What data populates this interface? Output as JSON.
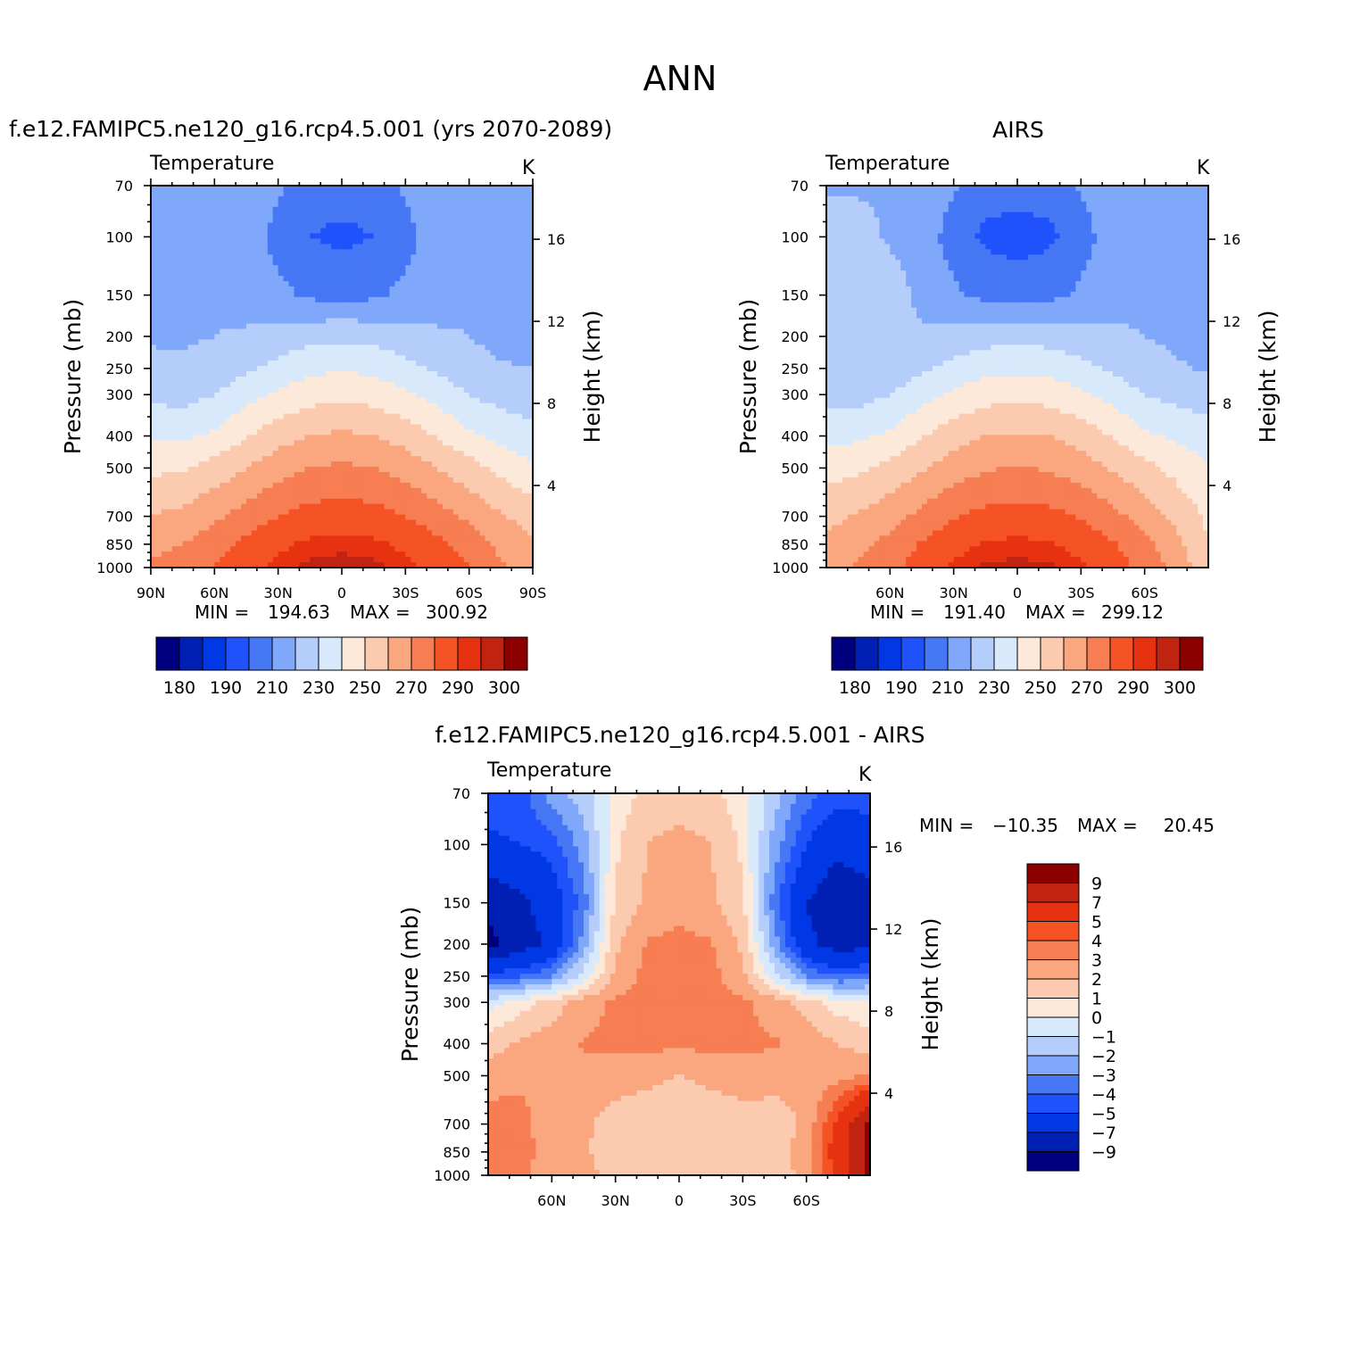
{
  "figure": {
    "season": "ANN"
  },
  "palettes": {
    "abs": [
      "#00007f",
      "#0020b4",
      "#0038e6",
      "#1f52fa",
      "#4677f5",
      "#80a8fa",
      "#b4cdfa",
      "#d9e9fc",
      "#fde9d9",
      "#fccaae",
      "#faa780",
      "#f77d52",
      "#f55225",
      "#e63210",
      "#c02410",
      "#8c0000"
    ],
    "diff": [
      "#8c0000",
      "#c02410",
      "#e63210",
      "#f55225",
      "#f77d52",
      "#faa780",
      "#fccaae",
      "#fde9d9",
      "#d9e9fc",
      "#b4cdfa",
      "#80a8fa",
      "#4677f5",
      "#1f52fa",
      "#0038e6",
      "#0020b4",
      "#00007f"
    ]
  },
  "chart_data": [
    {
      "id": "model",
      "type": "contour",
      "title": "f.e12.FAMIPC5.ne120_g16.rcp4.5.001 (yrs 2070-2089)",
      "field": "Temperature",
      "units": "K",
      "xlabel": "",
      "ylabel": "Pressure (mb)",
      "ylabel_right": "Height (km)",
      "xlim": [
        90,
        -90
      ],
      "x_ticks": [
        90,
        60,
        30,
        0,
        -30,
        -60,
        -90
      ],
      "x_ticklabels": [
        "90N",
        "60N",
        "30N",
        "0",
        "30S",
        "60S",
        "90S"
      ],
      "ylim": [
        1000,
        70
      ],
      "y_ticks": [
        70,
        100,
        150,
        200,
        250,
        300,
        400,
        500,
        700,
        850,
        1000
      ],
      "y_ticklabels": [
        "70",
        "100",
        "150",
        "200",
        "250",
        "300",
        "400",
        "500",
        "700",
        "850",
        "1000"
      ],
      "height_ticks_km": [
        4,
        8,
        12,
        16
      ],
      "height_ticklabels": [
        "4",
        "8",
        "12",
        "16"
      ],
      "levels": [
        180,
        185,
        190,
        200,
        210,
        220,
        230,
        240,
        250,
        260,
        270,
        280,
        290,
        295,
        300
      ],
      "colorbar_labels": [
        "180",
        "190",
        "210",
        "230",
        "250",
        "270",
        "290",
        "300"
      ],
      "stats": {
        "min_label": "MIN =",
        "min": "194.63",
        "max_label": "MAX =",
        "max": "300.92"
      },
      "lat": [
        90,
        75,
        60,
        45,
        30,
        15,
        0,
        -15,
        -30,
        -45,
        -60,
        -75,
        -90
      ],
      "plev": [
        70,
        100,
        150,
        200,
        250,
        300,
        400,
        500,
        700,
        850,
        1000
      ],
      "values": [
        [
          219,
          219,
          219,
          219,
          212,
          204,
          204,
          204,
          212,
          219,
          219,
          214,
          212
        ],
        [
          219,
          219,
          219,
          216,
          206,
          200,
          198,
          200,
          206,
          216,
          219,
          213,
          212
        ],
        [
          219,
          219,
          219,
          217,
          213,
          208,
          207,
          208,
          213,
          217,
          219,
          214,
          213
        ],
        [
          219,
          219,
          220,
          221,
          224,
          227,
          228,
          227,
          224,
          221,
          220,
          217,
          215
        ],
        [
          222,
          221,
          224,
          228,
          233,
          237,
          239,
          237,
          233,
          228,
          224,
          221,
          220
        ],
        [
          228,
          226,
          230,
          236,
          242,
          246,
          248,
          246,
          242,
          236,
          230,
          226,
          224
        ],
        [
          238,
          238,
          242,
          249,
          256,
          260,
          262,
          260,
          256,
          249,
          242,
          237,
          233
        ],
        [
          248,
          249,
          254,
          260,
          266,
          270,
          272,
          270,
          266,
          260,
          254,
          247,
          241
        ],
        [
          260,
          263,
          268,
          274,
          280,
          284,
          285,
          284,
          280,
          274,
          268,
          261,
          256
        ],
        [
          267,
          270,
          276,
          283,
          288,
          292,
          293,
          292,
          288,
          283,
          276,
          268,
          261
        ],
        [
          272,
          274,
          280,
          287,
          292,
          297,
          298,
          297,
          292,
          287,
          280,
          271,
          264
        ]
      ]
    },
    {
      "id": "obs",
      "type": "contour",
      "title": "AIRS",
      "field": "Temperature",
      "units": "K",
      "xlabel": "",
      "ylabel": "Pressure (mb)",
      "ylabel_right": "Height (km)",
      "xlim": [
        90,
        -90
      ],
      "x_ticks": [
        60,
        30,
        0,
        -30,
        -60
      ],
      "x_ticklabels": [
        "60N",
        "30N",
        "0",
        "30S",
        "60S"
      ],
      "ylim": [
        1000,
        70
      ],
      "y_ticks": [
        70,
        100,
        150,
        200,
        250,
        300,
        400,
        500,
        700,
        850,
        1000
      ],
      "y_ticklabels": [
        "70",
        "100",
        "150",
        "200",
        "250",
        "300",
        "400",
        "500",
        "700",
        "850",
        "1000"
      ],
      "height_ticks_km": [
        4,
        8,
        12,
        16
      ],
      "height_ticklabels": [
        "4",
        "8",
        "12",
        "16"
      ],
      "levels": [
        180,
        185,
        190,
        200,
        210,
        220,
        230,
        240,
        250,
        260,
        270,
        280,
        290,
        295,
        300
      ],
      "colorbar_labels": [
        "180",
        "190",
        "210",
        "230",
        "250",
        "270",
        "290",
        "300"
      ],
      "stats": {
        "min_label": "MIN =",
        "min": "191.40",
        "max_label": "MAX =",
        "max": "299.12"
      },
      "lat": [
        90,
        75,
        60,
        45,
        30,
        15,
        0,
        -15,
        -30,
        -45,
        -60,
        -75,
        -90
      ],
      "plev": [
        70,
        100,
        150,
        200,
        250,
        300,
        400,
        500,
        700,
        850,
        1000
      ],
      "values": [
        [
          219,
          219,
          219,
          218,
          211,
          204,
          204,
          204,
          211,
          218,
          219,
          217,
          212
        ],
        [
          224,
          223,
          219,
          216,
          205,
          198,
          196,
          198,
          205,
          216,
          219,
          217,
          214
        ],
        [
          226,
          226,
          224,
          218,
          212,
          207,
          206,
          207,
          212,
          218,
          219,
          217,
          216
        ],
        [
          225,
          225,
          223,
          221,
          224,
          226,
          227,
          226,
          224,
          221,
          220,
          218,
          217
        ],
        [
          222,
          221,
          224,
          228,
          233,
          237,
          238,
          237,
          233,
          228,
          224,
          221,
          219
        ],
        [
          227,
          226,
          230,
          236,
          242,
          246,
          247,
          246,
          242,
          236,
          230,
          227,
          224
        ],
        [
          237,
          238,
          242,
          249,
          256,
          260,
          261,
          260,
          256,
          249,
          242,
          238,
          235
        ],
        [
          246,
          248,
          253,
          259,
          265,
          269,
          271,
          269,
          265,
          259,
          253,
          247,
          241
        ],
        [
          257,
          261,
          266,
          273,
          279,
          283,
          284,
          283,
          279,
          273,
          266,
          257,
          248
        ],
        [
          263,
          267,
          273,
          281,
          287,
          291,
          292,
          291,
          287,
          281,
          273,
          263,
          250
        ],
        [
          268,
          271,
          277,
          285,
          291,
          296,
          297,
          296,
          291,
          285,
          277,
          266,
          254
        ]
      ]
    },
    {
      "id": "diff",
      "type": "contour",
      "title": "f.e12.FAMIPC5.ne120_g16.rcp4.5.001 - AIRS",
      "field": "Temperature",
      "units": "K",
      "xlabel": "",
      "ylabel": "Pressure (mb)",
      "ylabel_right": "Height (km)",
      "xlim": [
        90,
        -90
      ],
      "x_ticks": [
        60,
        30,
        0,
        -30,
        -60
      ],
      "x_ticklabels": [
        "60N",
        "30N",
        "0",
        "30S",
        "60S"
      ],
      "ylim": [
        1000,
        70
      ],
      "y_ticks": [
        70,
        100,
        150,
        200,
        250,
        300,
        400,
        500,
        700,
        850,
        1000
      ],
      "y_ticklabels": [
        "70",
        "100",
        "150",
        "200",
        "250",
        "300",
        "400",
        "500",
        "700",
        "850",
        "1000"
      ],
      "height_ticks_km": [
        4,
        8,
        12,
        16
      ],
      "height_ticklabels": [
        "4",
        "8",
        "12",
        "16"
      ],
      "levels": [
        -9,
        -7,
        -5,
        -4,
        -3,
        -2,
        -1,
        0,
        1,
        2,
        3,
        4,
        5,
        7,
        9
      ],
      "colorbar_labels": [
        "9",
        "7",
        "5",
        "4",
        "3",
        "2",
        "1",
        "0",
        "−1",
        "−2",
        "−3",
        "−4",
        "−5",
        "−7",
        "−9"
      ],
      "stats": {
        "min_label": "MIN =",
        "min": "−10.35",
        "max_label": "MAX =",
        "max": "20.45"
      },
      "lat": [
        90,
        75,
        60,
        45,
        30,
        15,
        0,
        -15,
        -30,
        -45,
        -60,
        -75,
        -90
      ],
      "plev": [
        70,
        100,
        150,
        200,
        250,
        300,
        400,
        500,
        700,
        850,
        1000
      ],
      "values": [
        [
          -4.5,
          -4.5,
          -2.5,
          -1.5,
          0.5,
          1.2,
          1.0,
          1.2,
          0.5,
          -1.5,
          -3.5,
          -4.5,
          -4.5
        ],
        [
          -5.2,
          -5.0,
          -4.5,
          -2.5,
          0.8,
          2.0,
          2.6,
          2.0,
          0.8,
          -2.5,
          -5.0,
          -6.5,
          -5.5
        ],
        [
          -8.5,
          -7.5,
          -6.0,
          -3.5,
          1.2,
          2.2,
          2.4,
          2.2,
          1.2,
          -3.5,
          -7.0,
          -8.5,
          -8.0
        ],
        [
          -9.5,
          -8.0,
          -6.5,
          -2.5,
          1.8,
          3.1,
          3.4,
          3.1,
          1.8,
          -2.5,
          -6.5,
          -8.0,
          -7.5
        ],
        [
          -4.5,
          -4.0,
          -3.0,
          -0.5,
          2.3,
          3.3,
          3.4,
          3.3,
          2.3,
          -0.5,
          -3.0,
          -4.0,
          -3.5
        ],
        [
          -0.5,
          0.5,
          1.5,
          2.5,
          3.2,
          3.3,
          3.2,
          3.3,
          3.2,
          2.5,
          1.5,
          0.5,
          0.2
        ],
        [
          1.5,
          2.2,
          2.5,
          3.1,
          3.3,
          3.3,
          3.2,
          3.3,
          3.3,
          3.1,
          2.6,
          2.0,
          1.5
        ],
        [
          2.6,
          2.9,
          3.0,
          2.8,
          2.5,
          2.2,
          2.0,
          2.2,
          2.5,
          2.4,
          2.2,
          2.6,
          3.2
        ],
        [
          3.4,
          3.2,
          2.6,
          2.2,
          1.5,
          1.5,
          1.2,
          1.5,
          1.5,
          1.5,
          2.2,
          5.5,
          9.5
        ],
        [
          3.8,
          3.4,
          2.6,
          2.1,
          1.6,
          1.6,
          1.4,
          1.6,
          1.6,
          1.6,
          2.5,
          6.0,
          9.5
        ],
        [
          3.2,
          3.1,
          2.6,
          2.2,
          1.8,
          1.6,
          1.4,
          1.6,
          1.6,
          1.5,
          2.3,
          5.5,
          9.5
        ]
      ]
    }
  ]
}
